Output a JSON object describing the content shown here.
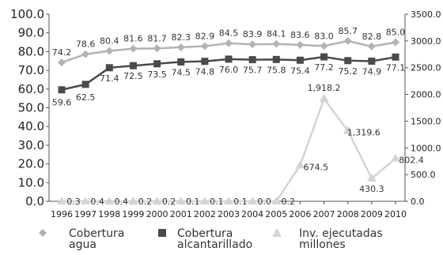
{
  "chart_data": {
    "type": "line",
    "title": "",
    "xlabel": "",
    "ylabel": "",
    "x": [
      "1996",
      "1997",
      "1998",
      "1999",
      "2000",
      "2001",
      "2002",
      "2003",
      "2004",
      "2005",
      "2006",
      "2007",
      "2008",
      "2009",
      "2010"
    ],
    "ylim_left": [
      0,
      100
    ],
    "ylim_right": [
      0,
      3500
    ],
    "yticks_left": [
      "0.0",
      "10.0",
      "20.0",
      "30.0",
      "40.0",
      "50.0",
      "60.0",
      "70.0",
      "80.0",
      "90.0",
      "100.0"
    ],
    "yticks_right": [
      "0.0",
      "500.0",
      "1000.0",
      "1500.0",
      "2000.0",
      "2500.0",
      "3000.0",
      "3500.0"
    ],
    "legend_position": "bottom",
    "grid": false,
    "series": [
      {
        "name": "Cobertura agua",
        "axis": "left",
        "marker": "diamond",
        "color": "#b3b3b3",
        "values": [
          74.2,
          78.6,
          80.4,
          81.6,
          81.7,
          82.3,
          82.9,
          84.5,
          83.9,
          84.1,
          83.6,
          83.0,
          85.7,
          82.8,
          85.0
        ],
        "labels": [
          "74.2",
          "78.6",
          "80.4",
          "81.6",
          "81.7",
          "82.3",
          "82.9",
          "84.5",
          "83.9",
          "84.1",
          "83.6",
          "83.0",
          "85.7",
          "82.8",
          "85.0"
        ]
      },
      {
        "name": "Cobertura alcantarillado",
        "axis": "left",
        "marker": "square",
        "color": "#4a4a4a",
        "values": [
          59.6,
          62.5,
          71.4,
          72.5,
          73.5,
          74.5,
          74.8,
          76.0,
          75.7,
          75.8,
          75.4,
          77.2,
          75.2,
          74.9,
          77.1
        ],
        "labels": [
          "59.6",
          "62.5",
          "71.4",
          "72.5",
          "73.5",
          "74.5",
          "74.8",
          "76.0",
          "75.7",
          "75.8",
          "75.4",
          "77.2",
          "75.2",
          "74.9",
          "77.1"
        ]
      },
      {
        "name": "Inv. ejecutadas millones",
        "axis": "right",
        "marker": "triangle",
        "color": "#d4d4d4",
        "values": [
          0.3,
          0.4,
          0.4,
          0.2,
          0.2,
          0.1,
          0.1,
          0.1,
          0.0,
          0.2,
          674.5,
          1918.2,
          1319.6,
          430.3,
          802.4
        ],
        "labels": [
          "0.3",
          "0.4",
          "0.4",
          "0.2",
          "0.2",
          "0.1",
          "0.1",
          "0.1",
          "0.0",
          "0.2",
          "674.5",
          "1,918.2",
          "1,319.6",
          "430.3",
          "802.4"
        ]
      }
    ]
  },
  "legend": {
    "items": [
      {
        "line1": "Cobertura",
        "line2": "agua",
        "icon": "diamond-marker"
      },
      {
        "line1": "Cobertura",
        "line2": "alcantarillado",
        "icon": "square-marker"
      },
      {
        "line1": "Inv. ejecutadas",
        "line2": "millones",
        "icon": "triangle-marker"
      }
    ]
  }
}
